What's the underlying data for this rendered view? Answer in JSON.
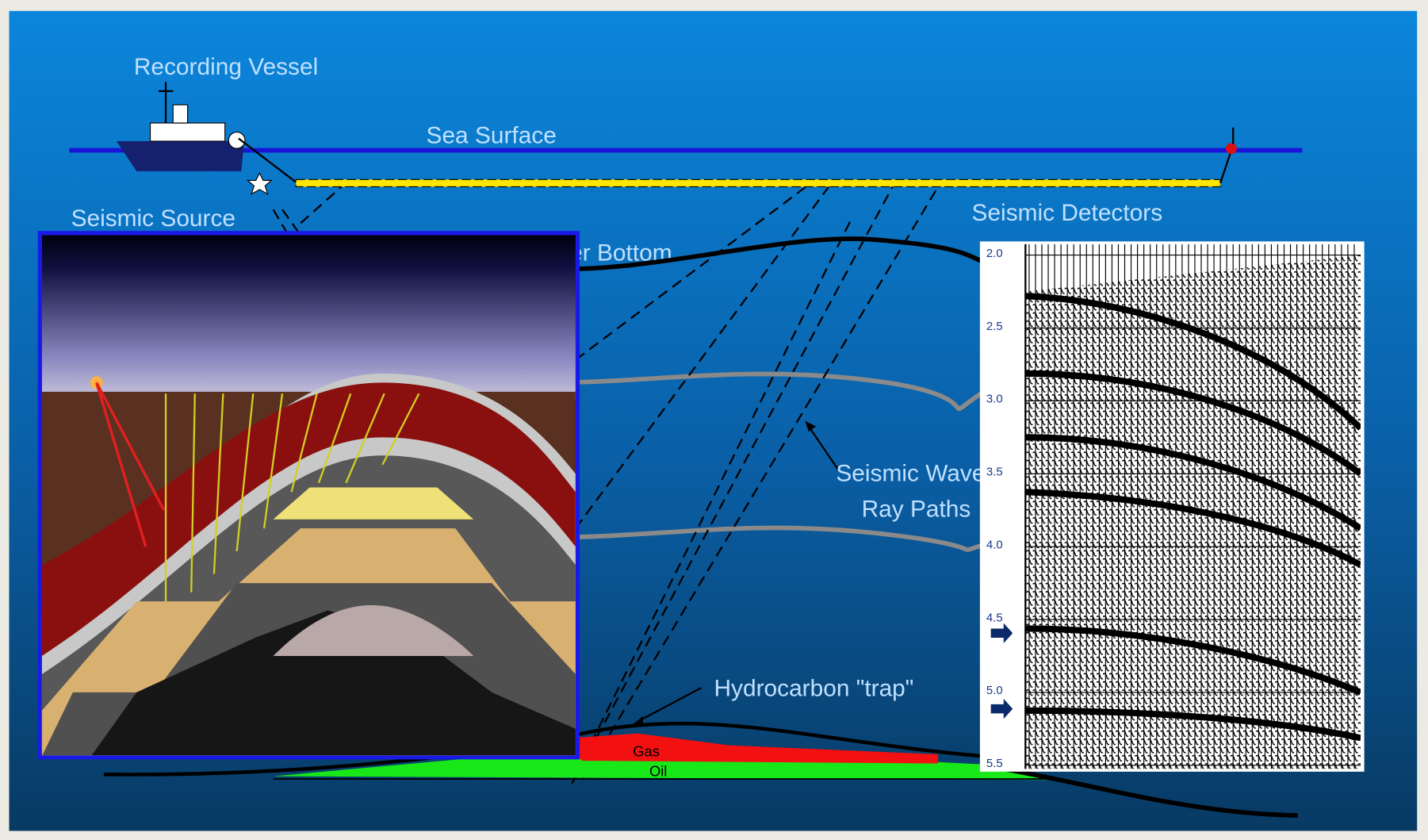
{
  "labels": {
    "vessel": "Recording Vessel",
    "sea_surface": "Sea Surface",
    "source": "Seismic Source",
    "detectors": "Seismic Detectors",
    "water_bottom": "Water Bottom",
    "ray_paths_1": "Seismic Wave",
    "ray_paths_2": "Ray Paths",
    "trap": "Hydrocarbon \"trap\"",
    "gas": "Gas",
    "oil": "Oil"
  },
  "seismogram": {
    "ticks": [
      "2.0",
      "2.5",
      "3.0",
      "3.5",
      "4.0",
      "4.5",
      "5.0",
      "5.5"
    ]
  }
}
